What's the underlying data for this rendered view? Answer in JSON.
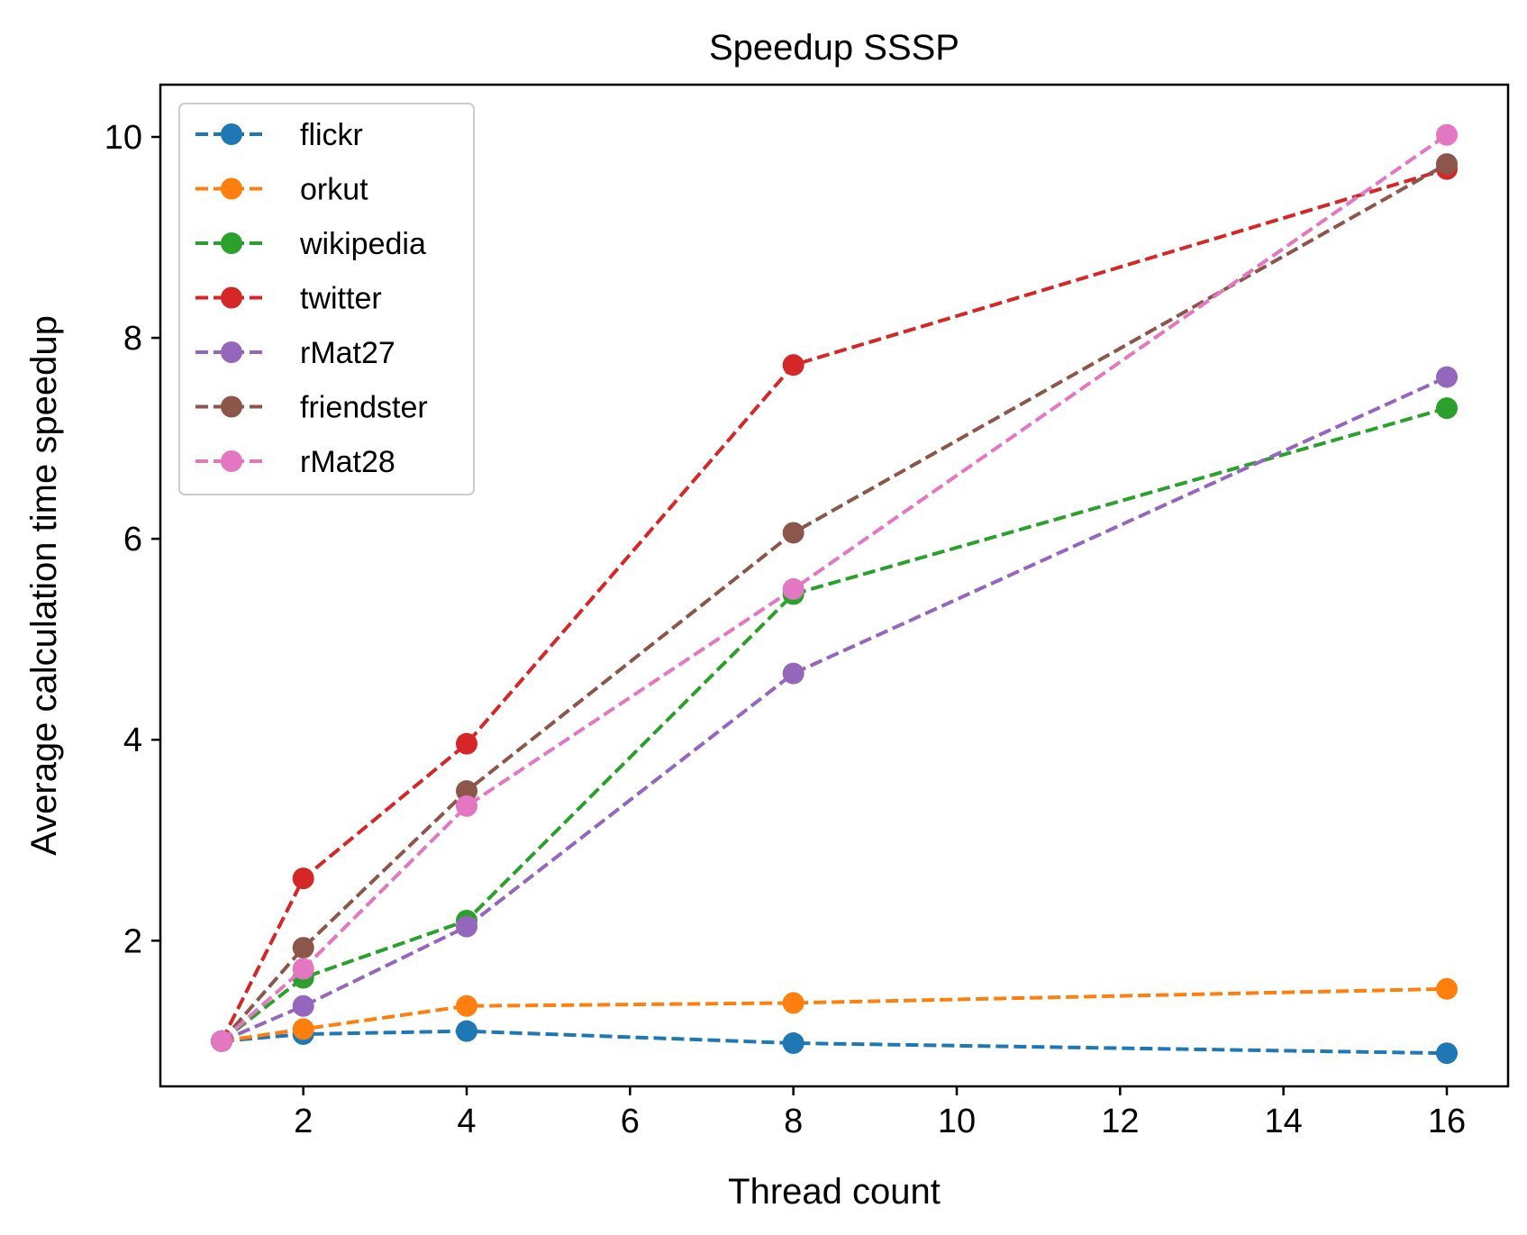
{
  "chart_data": {
    "type": "line",
    "title": "Speedup SSSP",
    "xlabel": "Thread count",
    "ylabel": "Average calculation time speedup",
    "x": [
      1,
      2,
      4,
      8,
      16
    ],
    "xlim": [
      0.25,
      16.75
    ],
    "ylim": [
      0.55,
      10.52
    ],
    "xticks": [
      2,
      4,
      6,
      8,
      10,
      12,
      14,
      16
    ],
    "yticks": [
      2,
      4,
      6,
      8,
      10
    ],
    "grid": false,
    "legend_position": "upper-left",
    "line_style": "dashed",
    "marker": "circle",
    "series": [
      {
        "name": "flickr",
        "color": "#1f77b4",
        "values": [
          1.0,
          1.07,
          1.1,
          0.98,
          0.88
        ]
      },
      {
        "name": "orkut",
        "color": "#ff7f0e",
        "values": [
          1.0,
          1.12,
          1.35,
          1.38,
          1.52
        ]
      },
      {
        "name": "wikipedia",
        "color": "#2ca02c",
        "values": [
          1.0,
          1.63,
          2.2,
          5.45,
          7.3
        ]
      },
      {
        "name": "twitter",
        "color": "#d62728",
        "values": [
          1.0,
          2.62,
          3.96,
          7.73,
          9.68
        ]
      },
      {
        "name": "rMat27",
        "color": "#9467bd",
        "values": [
          1.0,
          1.35,
          2.14,
          4.66,
          7.61
        ]
      },
      {
        "name": "friendster",
        "color": "#8c564b",
        "values": [
          1.0,
          1.93,
          3.49,
          6.06,
          9.73
        ]
      },
      {
        "name": "rMat28",
        "color": "#e377c2",
        "values": [
          1.0,
          1.72,
          3.34,
          5.5,
          10.02
        ]
      }
    ]
  }
}
